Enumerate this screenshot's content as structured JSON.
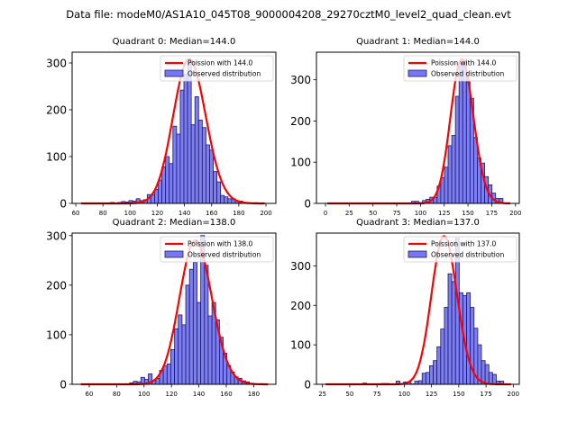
{
  "suptitle": "Data file: modeM0/AS1A10_045T08_9000004208_29270cztM0_level2_quad_clean.evt",
  "colors": {
    "bar_fill": "#7777f2",
    "bar_edge": "#1a1a66",
    "poisson_line": "#ff0000",
    "axis": "#000000"
  },
  "chart_data": [
    {
      "type": "bar",
      "title": "Quadrant 0: Median=144.0",
      "median": 144.0,
      "legend": [
        "Poission with 144.0",
        "Observed distribution"
      ],
      "legend_position": "top-right",
      "xlim": [
        57.3,
        207.3
      ],
      "ylim": [
        0,
        323
      ],
      "xticks": [
        60,
        80,
        100,
        120,
        140,
        160,
        180,
        200
      ],
      "yticks": [
        0,
        100,
        200,
        300
      ],
      "bin_edges_start": 64,
      "bin_width": 2.7,
      "values": [
        1,
        0,
        0,
        0,
        0,
        0,
        0,
        1,
        2,
        1,
        2,
        4,
        3,
        6,
        5,
        10,
        6,
        8,
        19,
        18,
        30,
        50,
        78,
        100,
        85,
        165,
        148,
        242,
        275,
        308,
        168,
        228,
        178,
        162,
        125,
        114,
        68,
        46,
        17,
        14,
        10,
        10,
        6,
        5,
        2,
        1,
        1,
        1,
        0,
        1
      ],
      "poisson": {
        "mu": 144.0,
        "peak": 308
      }
    },
    {
      "type": "bar",
      "title": "Quadrant 1: Median=144.0",
      "median": 144.0,
      "legend": [
        "Poission with 144.0",
        "Observed distribution"
      ],
      "legend_position": "top-right",
      "xlim": [
        -9.5,
        204
      ],
      "ylim": [
        0,
        367
      ],
      "xticks": [
        0,
        25,
        50,
        75,
        100,
        125,
        150,
        175,
        200
      ],
      "yticks": [
        0,
        100,
        200,
        300
      ],
      "bin_edges_start": 2,
      "bin_width": 3.85,
      "values": [
        0,
        0,
        0,
        0,
        0,
        0,
        0,
        0,
        0,
        0,
        0,
        0,
        0,
        0,
        0,
        0,
        0,
        0,
        0,
        0,
        0,
        0,
        1,
        5,
        5,
        2,
        7,
        10,
        15,
        15,
        42,
        62,
        88,
        140,
        165,
        260,
        340,
        348,
        295,
        255,
        160,
        110,
        98,
        65,
        45,
        25,
        12,
        12,
        0,
        0
      ],
      "poisson": {
        "mu": 144.0,
        "peak": 350
      }
    },
    {
      "type": "bar",
      "title": "Quadrant 2: Median=138.0",
      "median": 138.0,
      "legend": [
        "Poission with 138.0",
        "Observed distribution"
      ],
      "legend_position": "top-right",
      "xlim": [
        47.5,
        196.2
      ],
      "ylim": [
        0,
        305
      ],
      "xticks": [
        60,
        80,
        100,
        120,
        140,
        160,
        180
      ],
      "yticks": [
        0,
        100,
        200,
        300
      ],
      "bin_edges_start": 54,
      "bin_width": 2.73,
      "values": [
        1,
        0,
        0,
        0,
        0,
        0,
        0,
        0,
        0,
        0,
        0,
        0,
        1,
        3,
        6,
        5,
        14,
        10,
        21,
        8,
        12,
        28,
        37,
        41,
        70,
        112,
        140,
        120,
        200,
        232,
        246,
        165,
        300,
        240,
        138,
        165,
        130,
        95,
        63,
        38,
        25,
        15,
        12,
        7,
        5,
        2,
        1,
        1,
        0,
        0
      ],
      "poisson": {
        "mu": 138.0,
        "peak": 290
      }
    },
    {
      "type": "bar",
      "title": "Quadrant 3: Median=137.0",
      "median": 137.0,
      "legend": [
        "Poission with 137.0",
        "Observed distribution"
      ],
      "legend_position": "top-right",
      "xlim": [
        19.5,
        205.5
      ],
      "ylim": [
        0,
        383
      ],
      "xticks": [
        25,
        50,
        75,
        100,
        125,
        150,
        175,
        200
      ],
      "yticks": [
        0,
        100,
        200,
        300
      ],
      "bin_edges_start": 28,
      "bin_width": 3.4,
      "values": [
        1,
        0,
        0,
        0,
        0,
        0,
        0,
        0,
        0,
        0,
        3,
        1,
        0,
        0,
        0,
        2,
        2,
        0,
        0,
        8,
        2,
        6,
        5,
        1,
        8,
        9,
        28,
        30,
        47,
        60,
        95,
        140,
        195,
        280,
        260,
        370,
        232,
        225,
        232,
        195,
        142,
        100,
        60,
        50,
        30,
        25,
        8,
        8,
        1,
        0
      ],
      "poisson": {
        "mu": 137.0,
        "peak": 375
      }
    }
  ]
}
